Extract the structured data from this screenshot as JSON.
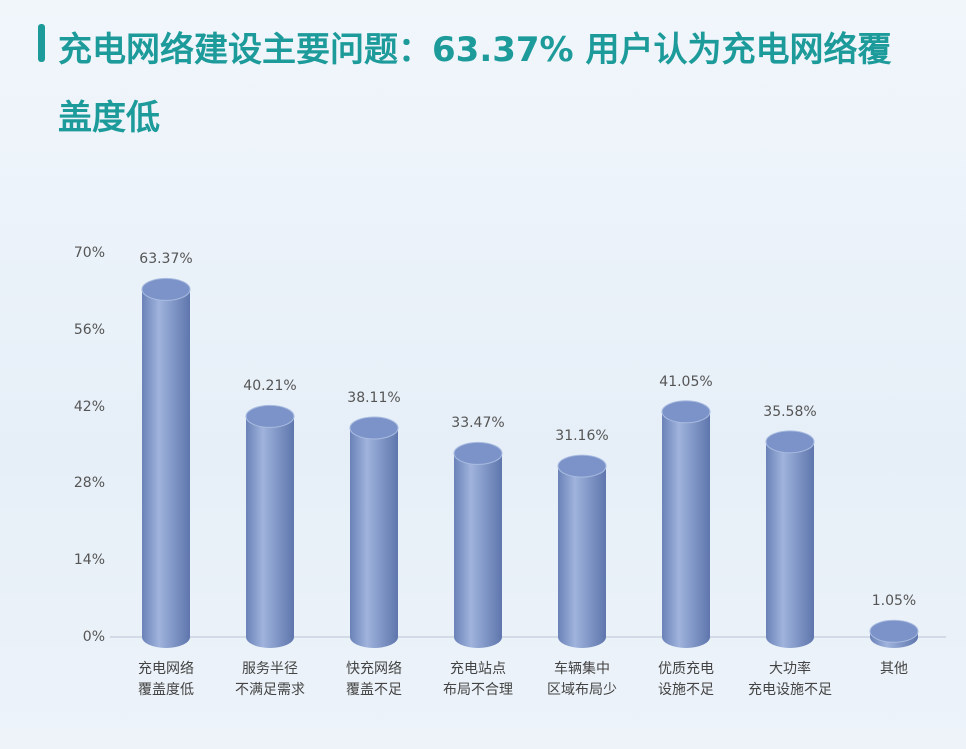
{
  "chart_data": {
    "type": "bar",
    "title": "充电网络建设主要问题：63.37% 用户认为充电网络覆盖度低",
    "categories": [
      "充电网络\n覆盖度低",
      "服务半径\n不满足需求",
      "快充网络\n覆盖不足",
      "充电站点\n布局不合理",
      "车辆集中\n区域布局少",
      "优质充电\n设施不足",
      "大功率\n充电设施不足",
      "其他"
    ],
    "values": [
      63.37,
      40.21,
      38.11,
      33.47,
      31.16,
      41.05,
      35.58,
      1.05
    ],
    "value_labels": [
      "63.37%",
      "40.21%",
      "38.11%",
      "33.47%",
      "31.16%",
      "41.05%",
      "35.58%",
      "1.05%"
    ],
    "color": "#7b93c8",
    "ylim": [
      0,
      70
    ],
    "yticks": [
      {
        "value": 0,
        "label": "0%"
      },
      {
        "value": 14,
        "label": "14%"
      },
      {
        "value": 28,
        "label": "28%"
      },
      {
        "value": 42,
        "label": "42%"
      },
      {
        "value": 56,
        "label": "56%"
      },
      {
        "value": 70,
        "label": "70%"
      }
    ]
  }
}
